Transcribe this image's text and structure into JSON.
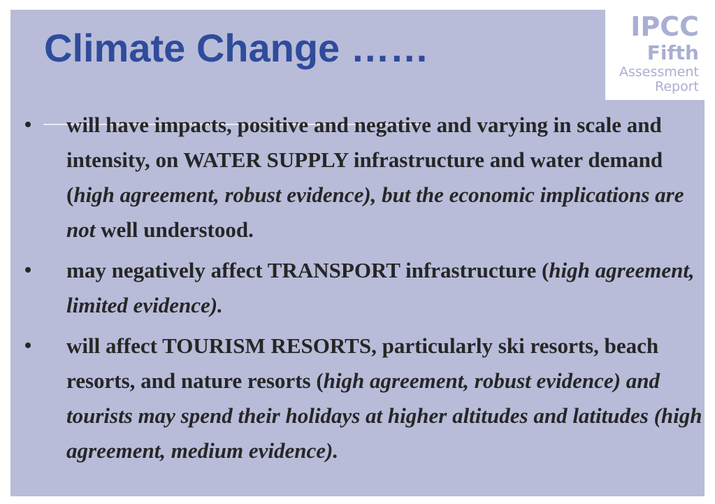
{
  "title": "Climate Change ……",
  "logo": [
    "IPCC",
    "Fifth",
    "Assessment",
    "Report"
  ],
  "bullets": [
    [
      "will have impacts, positive and negative and varying in scale and intensity, on WATER SUPPLY infrastructure and water demand (",
      "high agreement, robust evidence), but the economic implications are not",
      " well understood."
    ],
    [
      "may negatively affect TRANSPORT infrastructure (",
      "high agreement, limited evidence)."
    ],
    [
      "will affect TOURISM RESORTS, particularly ski resorts, beach resorts, and nature resorts (",
      "high agreement, robust evidence) and tourists may spend their holidays at higher altitudes and latitudes (high agreement, medium evidence)."
    ]
  ]
}
